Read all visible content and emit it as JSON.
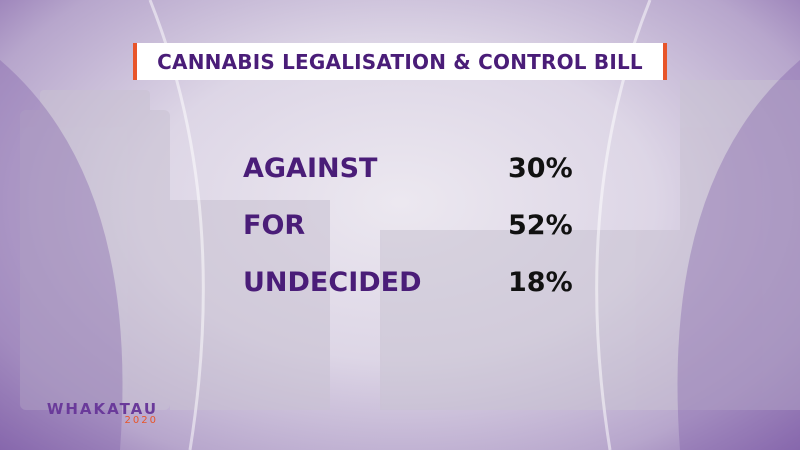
{
  "title": "CANNABIS LEGALISATION & CONTROL BILL",
  "rows": [
    {
      "label": "AGAINST",
      "value": "30%"
    },
    {
      "label": "FOR",
      "value": "52%"
    },
    {
      "label": "UNDECIDED",
      "value": "18%"
    }
  ],
  "logo": {
    "name": "WHAKATAU",
    "year": "2020"
  }
}
